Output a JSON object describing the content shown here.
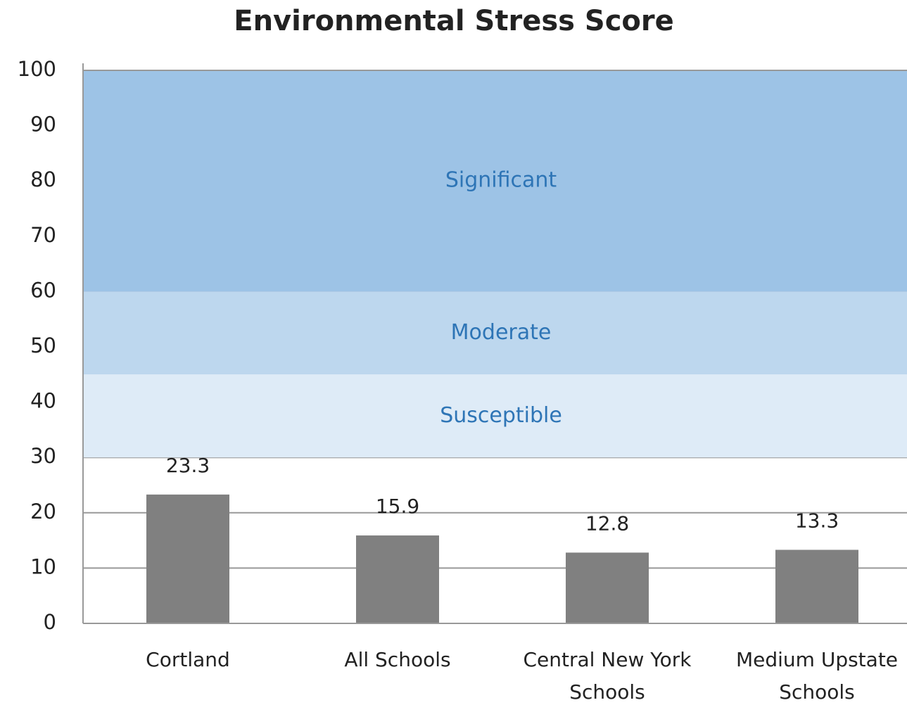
{
  "chart_data": {
    "type": "bar",
    "title": "Environmental Stress Score",
    "categories": [
      "Cortland",
      "All Schools",
      "Central New York Schools",
      "Medium Upstate Schools"
    ],
    "values": [
      23.3,
      15.9,
      12.8,
      13.3
    ],
    "color": "#808080",
    "ylim": [
      0,
      100
    ],
    "yticks": [
      0,
      10,
      20,
      30,
      40,
      50,
      60,
      70,
      80,
      90,
      100
    ],
    "grid": true,
    "bands": [
      {
        "label": "Significant",
        "from": 60,
        "to": 100,
        "color": "#9dc3e6"
      },
      {
        "label": "Moderate",
        "from": 45,
        "to": 60,
        "color": "#bdd7ee"
      },
      {
        "label": "Susceptible",
        "from": 30,
        "to": 45,
        "color": "#deebf7"
      }
    ],
    "band_label_color": "#2e75b6"
  }
}
